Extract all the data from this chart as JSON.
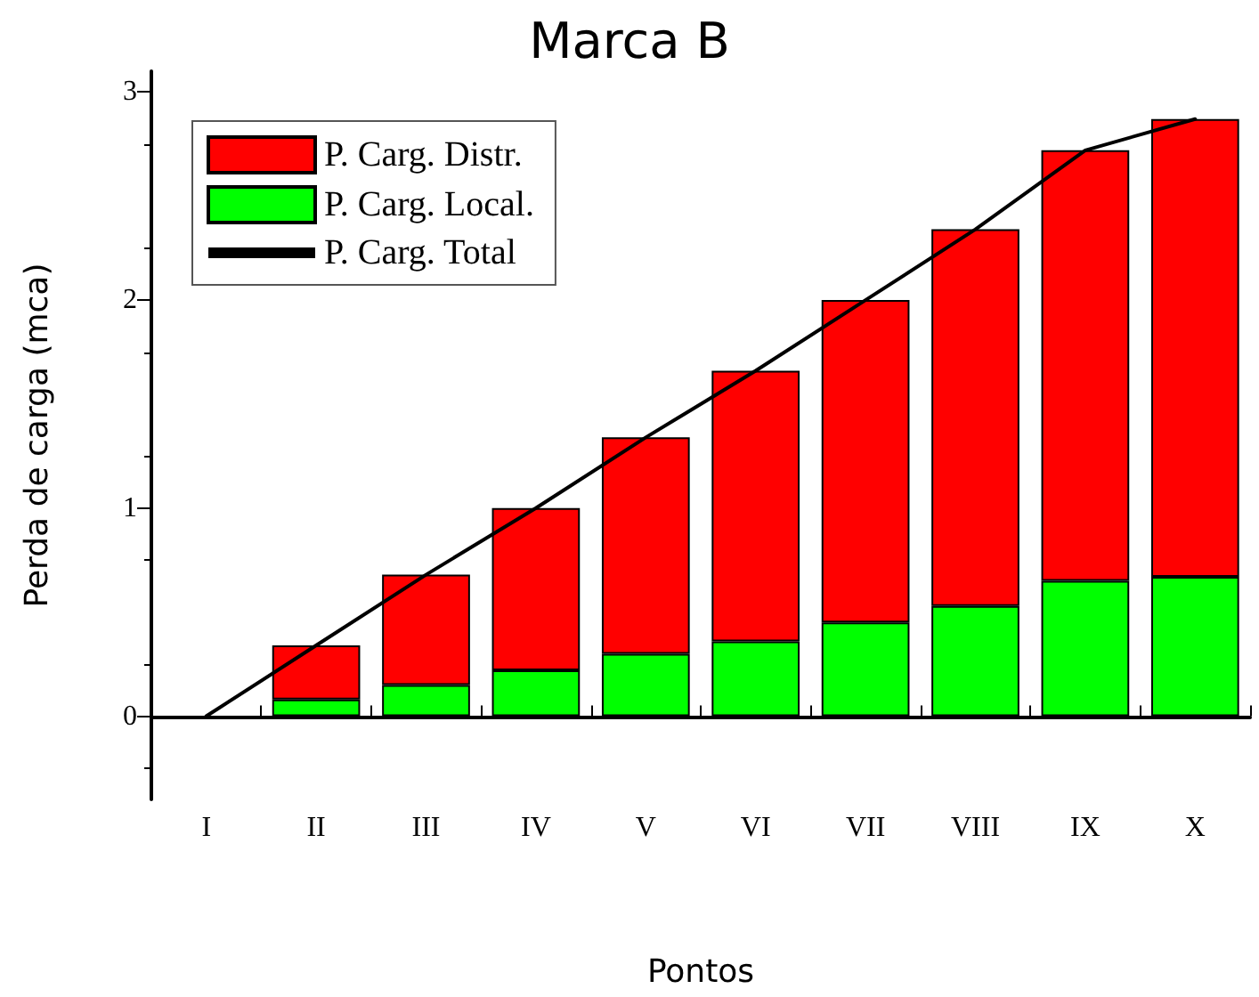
{
  "chart_data": {
    "type": "bar",
    "title": "Marca B",
    "xlabel": "Pontos",
    "ylabel": "Perda de carga (mca)",
    "categories": [
      "I",
      "II",
      "III",
      "IV",
      "V",
      "VI",
      "VII",
      "VIII",
      "IX",
      "X"
    ],
    "stacked": true,
    "series": [
      {
        "name": "P. Carg. Local.",
        "color": "#00ff00",
        "values": [
          null,
          0.08,
          0.15,
          0.22,
          0.3,
          0.36,
          0.45,
          0.53,
          0.65,
          0.67
        ]
      },
      {
        "name": "P. Carg. Distr.",
        "color": "#ff0000",
        "values": [
          null,
          0.26,
          0.53,
          0.78,
          1.04,
          1.3,
          1.55,
          1.81,
          2.07,
          2.2
        ]
      },
      {
        "name": "P. Carg. Total",
        "type": "line",
        "color": "#000000",
        "values": [
          0,
          0.34,
          0.68,
          1.0,
          1.34,
          1.66,
          2.0,
          2.34,
          2.72,
          2.87
        ]
      }
    ],
    "ylim": [
      -0.4,
      3.1
    ],
    "yticks": [
      0,
      1,
      2,
      3
    ],
    "legend": "top left",
    "marker": "none",
    "line_style": "solid"
  }
}
